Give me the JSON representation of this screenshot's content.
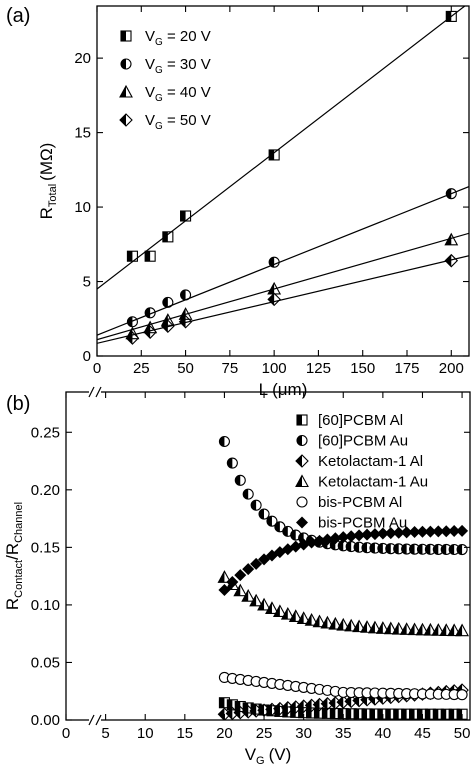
{
  "chart_data": [
    {
      "panel_label": "(a)",
      "type": "scatter",
      "xlabel": "L",
      "xlabel_unit": "(μm)",
      "ylabel": "R",
      "ylabel_sub": "Total",
      "ylabel_unit": "(MΩ)",
      "xlim": [
        0,
        210
      ],
      "ylim": [
        0,
        23.5
      ],
      "xticks": [
        0,
        25,
        50,
        75,
        100,
        125,
        150,
        175,
        200
      ],
      "yticks": [
        0,
        5,
        10,
        15,
        20
      ],
      "legend_position": "top-left",
      "series": [
        {
          "name": "V",
          "name_sub": "G",
          "name_rest": " = 20 V",
          "marker": "square-half",
          "x": [
            20,
            30,
            40,
            50,
            100,
            200
          ],
          "y": [
            6.7,
            6.7,
            8.0,
            9.4,
            13.5,
            22.8
          ],
          "fit": [
            4.5,
            0.0915
          ]
        },
        {
          "name": "V",
          "name_sub": "G",
          "name_rest": " = 30 V",
          "marker": "circle-half",
          "x": [
            20,
            30,
            40,
            50,
            100,
            200
          ],
          "y": [
            2.3,
            2.9,
            3.6,
            4.1,
            6.3,
            10.9
          ],
          "fit": [
            1.4,
            0.0475
          ]
        },
        {
          "name": "V",
          "name_sub": "G",
          "name_rest": " = 40 V",
          "marker": "triangle-half",
          "x": [
            20,
            30,
            40,
            50,
            100,
            200
          ],
          "y": [
            1.5,
            1.9,
            2.4,
            2.8,
            4.5,
            7.8
          ],
          "fit": [
            1.1,
            0.034
          ]
        },
        {
          "name": "V",
          "name_sub": "G",
          "name_rest": " = 50 V",
          "marker": "diamond-half",
          "x": [
            20,
            30,
            40,
            50,
            100,
            200
          ],
          "y": [
            1.2,
            1.6,
            2.0,
            2.3,
            3.8,
            6.4
          ],
          "fit": [
            0.85,
            0.028
          ]
        }
      ]
    },
    {
      "panel_label": "(b)",
      "type": "scatter",
      "xlabel": "V",
      "xlabel_sub": "G",
      "xlabel_unit": "(V)",
      "ylabel": "R",
      "ylabel_sub": "Contact",
      "ylabel_mid": "/R",
      "ylabel_sub2": "Channel",
      "xlim": [
        0,
        51
      ],
      "ylim": [
        0,
        0.285
      ],
      "xticks": [
        0,
        5,
        10,
        15,
        20,
        25,
        30,
        35,
        40,
        45,
        50
      ],
      "yticks": [
        0.0,
        0.05,
        0.1,
        0.15,
        0.2,
        0.25
      ],
      "ytick_labels": [
        "0.00",
        "0.05",
        "0.10",
        "0.15",
        "0.20",
        "0.25"
      ],
      "axis_break": true,
      "legend_position": "top-right",
      "series": [
        {
          "name": "[60]PCBM Al",
          "marker": "square-half",
          "type": "curve",
          "params": {
            "kind": "decay",
            "a": 0.005,
            "b": 0.01,
            "tau": 5
          }
        },
        {
          "name": "[60]PCBM Au",
          "marker": "circle-half",
          "type": "curve",
          "params": {
            "kind": "decay",
            "a": 0.148,
            "b": 0.094,
            "tau": 4.5
          }
        },
        {
          "name": "Ketolactam-1 Al",
          "marker": "diamond-half",
          "type": "curve",
          "params": {
            "kind": "rise",
            "a": 0.005,
            "b": 0.0007
          }
        },
        {
          "name": "Ketolactam-1 Au",
          "marker": "triangle-half",
          "type": "curve",
          "params": {
            "kind": "decay",
            "a": 0.077,
            "b": 0.047,
            "tau": 7
          }
        },
        {
          "name": "bis-PCBM Al",
          "marker": "circle-open",
          "type": "curve",
          "params": {
            "kind": "valley",
            "a": 0.037,
            "min": 0.024,
            "end": 0.022
          }
        },
        {
          "name": "bis-PCBM Au",
          "marker": "diamond-filled",
          "type": "curve",
          "params": {
            "kind": "rise-sat",
            "a": 0.113,
            "b": 0.052,
            "tau": 7
          }
        }
      ]
    }
  ]
}
